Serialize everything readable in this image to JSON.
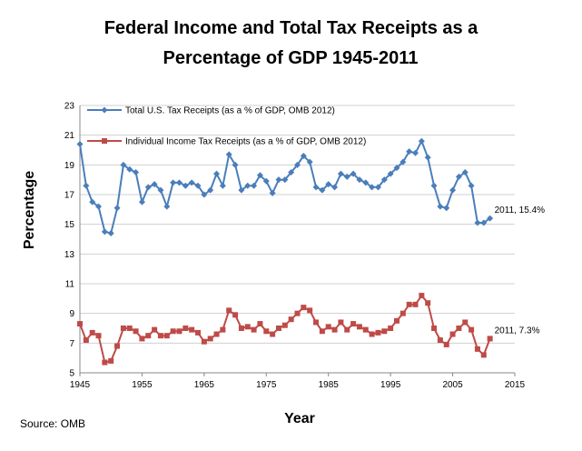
{
  "chart_data": {
    "type": "line",
    "title_line1": "Federal Income and Total Tax Receipts as a",
    "title_line2": "Percentage of  GDP  1945-2011",
    "xlabel": "Year",
    "ylabel": "Percentage",
    "source": "Source: OMB",
    "xlim": [
      1945,
      2015
    ],
    "ylim": [
      5,
      23
    ],
    "x_ticks": [
      1945,
      1955,
      1965,
      1975,
      1985,
      1995,
      2005,
      2015
    ],
    "y_ticks": [
      5,
      7,
      9,
      11,
      13,
      15,
      17,
      19,
      21,
      23
    ],
    "grid": "horizontal",
    "legend": "top-left",
    "x": [
      1945,
      1946,
      1947,
      1948,
      1949,
      1950,
      1951,
      1952,
      1953,
      1954,
      1955,
      1956,
      1957,
      1958,
      1959,
      1960,
      1961,
      1962,
      1963,
      1964,
      1965,
      1966,
      1967,
      1968,
      1969,
      1970,
      1971,
      1972,
      1973,
      1974,
      1975,
      1976,
      1977,
      1978,
      1979,
      1980,
      1981,
      1982,
      1983,
      1984,
      1985,
      1986,
      1987,
      1988,
      1989,
      1990,
      1991,
      1992,
      1993,
      1994,
      1995,
      1996,
      1997,
      1998,
      1999,
      2000,
      2001,
      2002,
      2003,
      2004,
      2005,
      2006,
      2007,
      2008,
      2009,
      2010,
      2011
    ],
    "series": [
      {
        "name": "Total U.S. Tax Receipts (as a % of GDP, OMB 2012)",
        "color": "#4a7ebb",
        "marker": "diamond",
        "values": [
          20.4,
          17.6,
          16.5,
          16.2,
          14.5,
          14.4,
          16.1,
          19.0,
          18.7,
          18.5,
          16.5,
          17.5,
          17.7,
          17.3,
          16.2,
          17.8,
          17.8,
          17.6,
          17.8,
          17.6,
          17.0,
          17.3,
          18.4,
          17.6,
          19.7,
          19.0,
          17.3,
          17.6,
          17.6,
          18.3,
          17.9,
          17.1,
          18.0,
          18.0,
          18.5,
          19.0,
          19.6,
          19.2,
          17.5,
          17.3,
          17.7,
          17.5,
          18.4,
          18.2,
          18.4,
          18.0,
          17.8,
          17.5,
          17.5,
          18.0,
          18.4,
          18.8,
          19.2,
          19.9,
          19.8,
          20.6,
          19.5,
          17.6,
          16.2,
          16.1,
          17.3,
          18.2,
          18.5,
          17.6,
          15.1,
          15.1,
          15.4
        ]
      },
      {
        "name": "Individual Income Tax Receipts (as a % of GDP, OMB 2012)",
        "color": "#be4b48",
        "marker": "square",
        "values": [
          8.3,
          7.2,
          7.7,
          7.5,
          5.7,
          5.8,
          6.8,
          8.0,
          8.0,
          7.8,
          7.3,
          7.5,
          7.9,
          7.5,
          7.5,
          7.8,
          7.8,
          8.0,
          7.9,
          7.7,
          7.1,
          7.3,
          7.6,
          7.9,
          9.2,
          8.9,
          8.0,
          8.1,
          7.9,
          8.3,
          7.8,
          7.6,
          8.0,
          8.2,
          8.6,
          9.0,
          9.4,
          9.2,
          8.4,
          7.8,
          8.1,
          7.9,
          8.4,
          7.9,
          8.3,
          8.1,
          7.9,
          7.6,
          7.7,
          7.8,
          8.0,
          8.5,
          9.0,
          9.6,
          9.6,
          10.2,
          9.7,
          8.0,
          7.2,
          6.9,
          7.6,
          8.0,
          8.4,
          7.9,
          6.6,
          6.2,
          7.3
        ]
      }
    ],
    "annotations": [
      {
        "text": "2011, 15.4%",
        "x": 2011,
        "y": 15.4
      },
      {
        "text": "2011,  7.3%",
        "x": 2011,
        "y": 7.3
      }
    ]
  }
}
